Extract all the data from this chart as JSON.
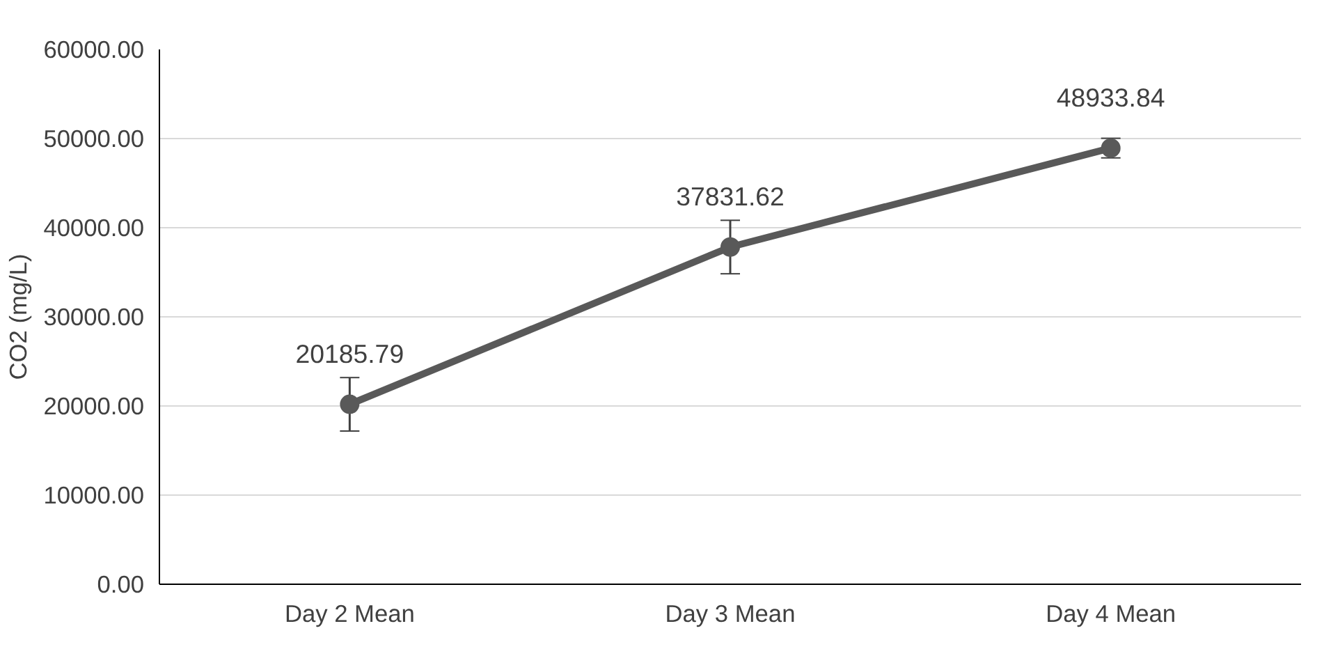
{
  "chart_data": {
    "type": "line",
    "ylabel": "CO2 (mg/L)",
    "categories": [
      "Day 2 Mean",
      "Day 3 Mean",
      "Day 4 Mean"
    ],
    "series": [
      {
        "color": "#595959",
        "values": [
          20185.79,
          37831.62,
          48933.84
        ],
        "errors": [
          3000,
          3000,
          1100
        ],
        "value_labels": [
          "20185.79",
          "37831.62",
          "48933.84"
        ]
      }
    ],
    "ylim": [
      0,
      60000
    ],
    "yticks": [
      {
        "value": 0,
        "label": "0.00"
      },
      {
        "value": 10000,
        "label": "10000.00"
      },
      {
        "value": 20000,
        "label": "20000.00"
      },
      {
        "value": 30000,
        "label": "30000.00"
      },
      {
        "value": 40000,
        "label": "40000.00"
      },
      {
        "value": 50000,
        "label": "50000.00"
      },
      {
        "value": 60000,
        "label": "60000.00"
      }
    ],
    "grid": "y",
    "marker": "circle",
    "line_style": "solid"
  }
}
